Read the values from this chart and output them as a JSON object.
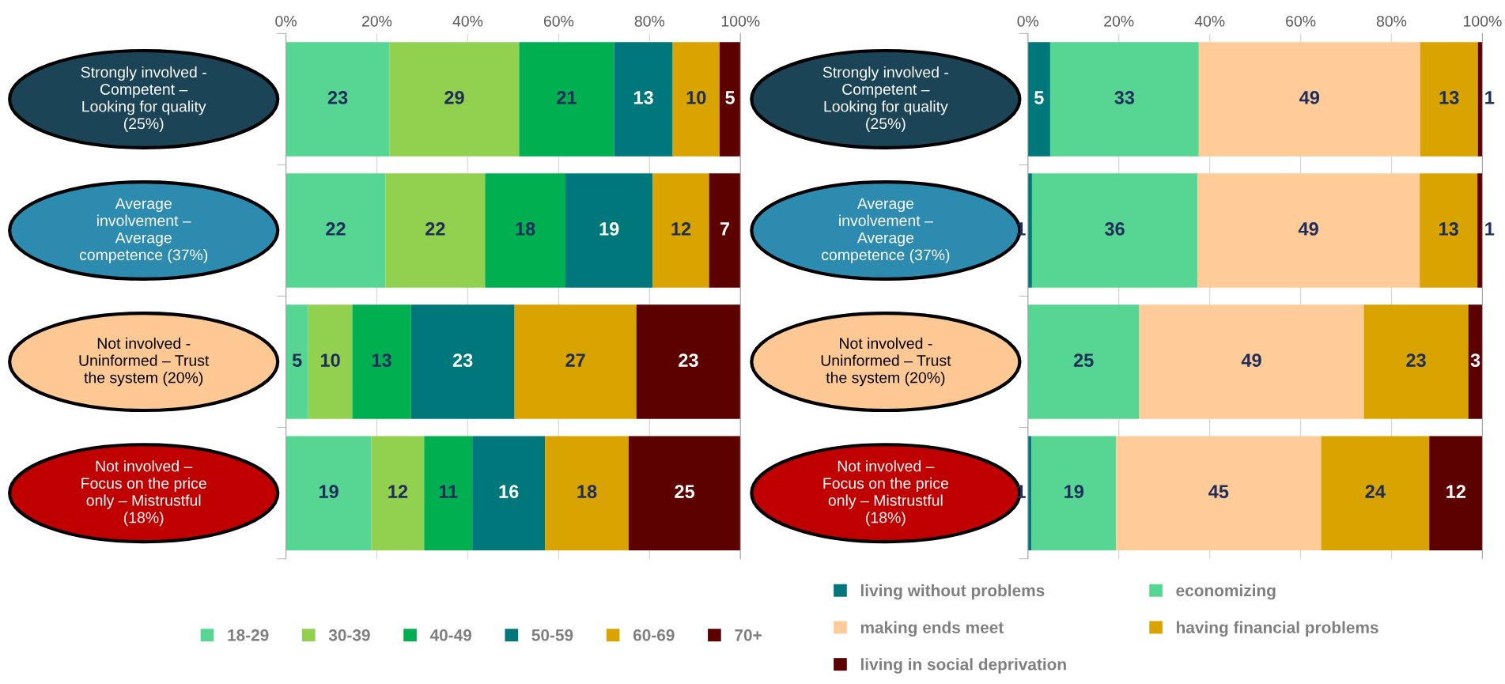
{
  "chart_data": [
    {
      "type": "bar",
      "orientation": "horizontal",
      "stacked": true,
      "categories": [
        "Strongly involved -\nCompetent –\nLooking for quality\n(25%)",
        "Average\ninvolvement –\nAverage\ncompetence (37%)",
        "Not involved -\nUninformed – Trust\nthe system (20%)",
        "Not involved –\nFocus on the price\nonly – Mistrustful\n(18%)"
      ],
      "series": [
        {
          "name": "18-29",
          "color": "#57d693",
          "values": [
            22.8,
            21.9,
            4.9,
            18.8
          ],
          "value_labels": [
            "23",
            "22",
            "5",
            "19"
          ]
        },
        {
          "name": "30-39",
          "color": "#92d050",
          "values": [
            28.5,
            21.9,
            9.7,
            11.6
          ],
          "value_labels": [
            "29",
            "22",
            "10",
            "12"
          ]
        },
        {
          "name": "40-49",
          "color": "#00b050",
          "values": [
            20.9,
            17.7,
            12.9,
            10.6
          ],
          "value_labels": [
            "21",
            "18",
            "13",
            "11"
          ]
        },
        {
          "name": "50-59",
          "color": "#00777a",
          "values": [
            12.9,
            19.2,
            22.8,
            16.0
          ],
          "value_labels": [
            "13",
            "19",
            "23",
            "16"
          ]
        },
        {
          "name": "60-69",
          "color": "#d9a400",
          "values": [
            10.3,
            12.4,
            26.8,
            18.4
          ],
          "value_labels": [
            "10",
            "12",
            "27",
            "18"
          ]
        },
        {
          "name": "70+",
          "color": "#5c0000",
          "values": [
            4.6,
            6.9,
            22.9,
            24.6
          ],
          "value_labels": [
            "5",
            "7",
            "23",
            "25"
          ]
        }
      ],
      "xlim": [
        0,
        100
      ],
      "xticks": [
        {
          "value": 0,
          "label": "0%"
        },
        {
          "value": 20,
          "label": "20%"
        },
        {
          "value": 40,
          "label": "40%"
        },
        {
          "value": 60,
          "label": "60%"
        },
        {
          "value": 80,
          "label": "80%"
        },
        {
          "value": 100,
          "label": "100%"
        }
      ],
      "grid": "x",
      "legend": "bottom"
    },
    {
      "type": "bar",
      "orientation": "horizontal",
      "stacked": true,
      "categories": [
        "Strongly involved -\nCompetent –\nLooking for quality\n(25%)",
        "Average\ninvolvement –\nAverage\ncompetence (37%)",
        "Not involved -\nUninformed – Trust\nthe system (20%)",
        "Not involved –\nFocus on the price\nonly – Mistrustful\n(18%)"
      ],
      "series": [
        {
          "name": "living without problems",
          "color": "#00777a",
          "values": [
            4.9,
            0.9,
            0,
            0.8
          ],
          "value_labels": [
            "5",
            "1",
            null,
            "1"
          ]
        },
        {
          "name": "economizing",
          "color": "#57d693",
          "values": [
            32.7,
            36.4,
            24.5,
            18.6
          ],
          "value_labels": [
            "33",
            "36",
            "25",
            "19"
          ]
        },
        {
          "name": "making ends meet",
          "color": "#ffcc99",
          "values": [
            48.7,
            48.9,
            49.4,
            45.1
          ],
          "value_labels": [
            "49",
            "49",
            "49",
            "45"
          ]
        },
        {
          "name": "having financial problems",
          "color": "#d9a400",
          "values": [
            12.7,
            12.7,
            23.0,
            23.8
          ],
          "value_labels": [
            "13",
            "13",
            "23",
            "24"
          ]
        },
        {
          "name": "living in social deprivation",
          "color": "#5c0000",
          "values": [
            1.0,
            1.1,
            3.1,
            11.7
          ],
          "value_labels": [
            "1",
            "1",
            "3",
            "12"
          ]
        }
      ],
      "xlim": [
        0,
        100
      ],
      "xticks": [
        {
          "value": 0,
          "label": "0%"
        },
        {
          "value": 20,
          "label": "20%"
        },
        {
          "value": 40,
          "label": "40%"
        },
        {
          "value": 60,
          "label": "60%"
        },
        {
          "value": 80,
          "label": "80%"
        },
        {
          "value": 100,
          "label": "100%"
        }
      ],
      "grid": "x",
      "legend": "bottom"
    }
  ]
}
